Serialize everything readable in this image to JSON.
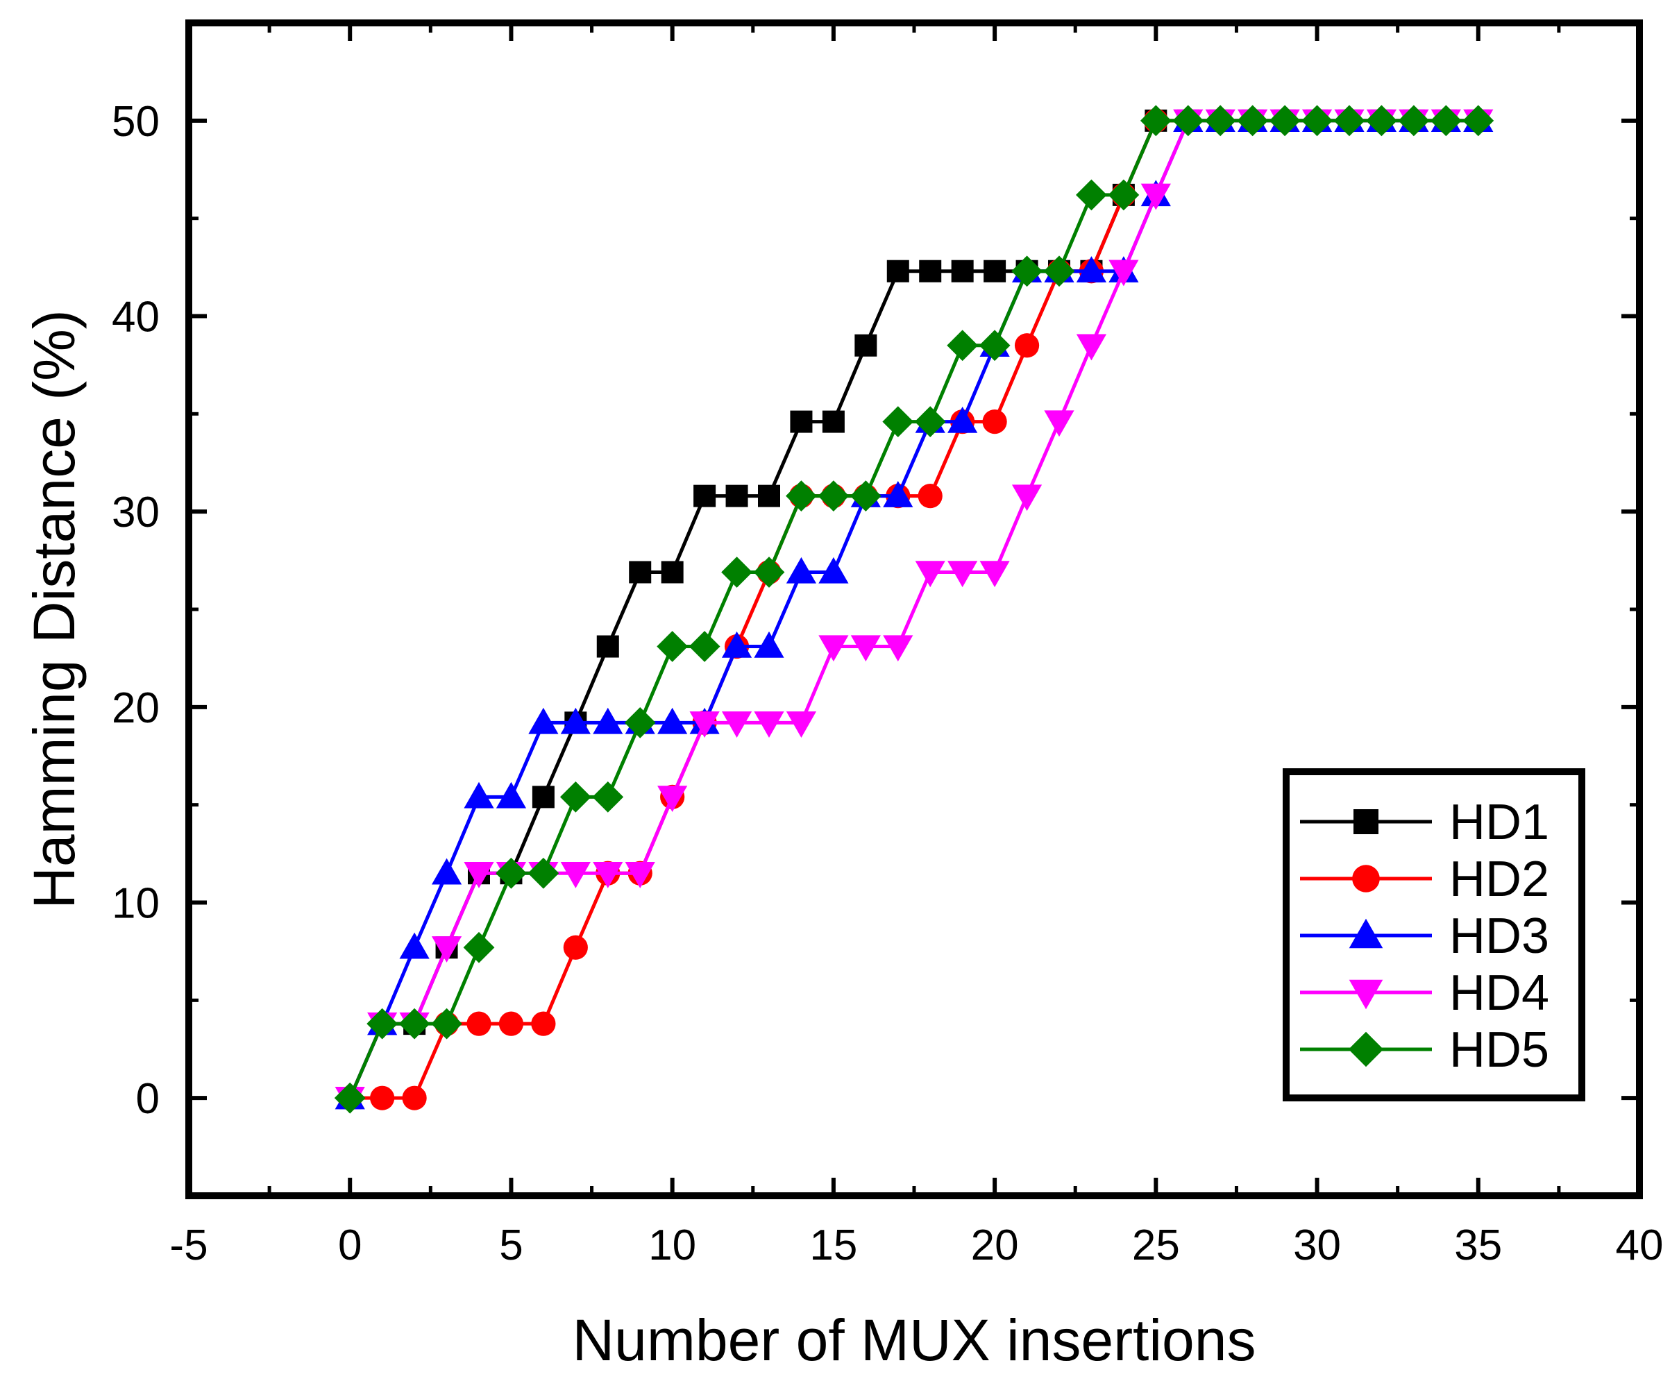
{
  "chart_data": {
    "type": "line",
    "xlabel": "Number of MUX insertions",
    "ylabel": "Hamming Distance (%)",
    "xlim": [
      -5,
      40
    ],
    "ylim": [
      -5,
      55
    ],
    "xticks": [
      -5,
      0,
      5,
      10,
      15,
      20,
      25,
      30,
      35,
      40
    ],
    "yticks": [
      0,
      10,
      20,
      30,
      40,
      50
    ],
    "grid": false,
    "legend_position": "bottom-right",
    "x": [
      0,
      1,
      2,
      3,
      4,
      5,
      6,
      7,
      8,
      9,
      10,
      11,
      12,
      13,
      14,
      15,
      16,
      17,
      18,
      19,
      20,
      21,
      22,
      23,
      24,
      25,
      26,
      27,
      28,
      29,
      30,
      31,
      32,
      33,
      34,
      35
    ],
    "series": [
      {
        "name": "HD1",
        "color": "#000000",
        "marker": "square",
        "values": [
          0,
          3.8,
          3.8,
          7.7,
          11.5,
          11.5,
          15.4,
          19.2,
          23.1,
          26.9,
          26.9,
          30.8,
          30.8,
          30.8,
          34.6,
          34.6,
          38.5,
          42.3,
          42.3,
          42.3,
          42.3,
          42.3,
          42.3,
          42.3,
          46.2,
          50,
          50,
          50,
          50,
          50,
          50,
          50,
          50,
          50,
          50,
          50
        ]
      },
      {
        "name": "HD2",
        "color": "#ff0000",
        "marker": "circle",
        "values": [
          0,
          0,
          0,
          3.8,
          3.8,
          3.8,
          3.8,
          7.7,
          11.5,
          11.5,
          15.4,
          19.2,
          23.1,
          26.9,
          30.8,
          30.8,
          30.8,
          30.8,
          30.8,
          34.6,
          34.6,
          38.5,
          42.3,
          42.3,
          46.2,
          50,
          50,
          50,
          50,
          50,
          50,
          50,
          50,
          50,
          50,
          50
        ]
      },
      {
        "name": "HD3",
        "color": "#0000ff",
        "marker": "triangle-up",
        "values": [
          0,
          3.8,
          7.7,
          11.5,
          15.4,
          15.4,
          19.2,
          19.2,
          19.2,
          19.2,
          19.2,
          19.2,
          23.1,
          23.1,
          26.9,
          26.9,
          30.8,
          30.8,
          34.6,
          34.6,
          38.5,
          42.3,
          42.3,
          42.3,
          42.3,
          46.2,
          50,
          50,
          50,
          50,
          50,
          50,
          50,
          50,
          50,
          50
        ]
      },
      {
        "name": "HD4",
        "color": "#ff00ff",
        "marker": "triangle-down",
        "values": [
          0,
          3.8,
          3.8,
          7.7,
          11.5,
          11.5,
          11.5,
          11.5,
          11.5,
          11.5,
          15.4,
          19.2,
          19.2,
          19.2,
          19.2,
          23.1,
          23.1,
          23.1,
          26.9,
          26.9,
          26.9,
          30.8,
          34.6,
          38.5,
          42.3,
          46.2,
          50,
          50,
          50,
          50,
          50,
          50,
          50,
          50,
          50,
          50
        ]
      },
      {
        "name": "HD5",
        "color": "#008000",
        "marker": "diamond",
        "values": [
          0,
          3.8,
          3.8,
          3.8,
          7.7,
          11.5,
          11.5,
          15.4,
          15.4,
          19.2,
          23.1,
          23.1,
          26.9,
          26.9,
          30.8,
          30.8,
          30.8,
          34.6,
          34.6,
          38.5,
          38.5,
          42.3,
          42.3,
          46.2,
          46.2,
          50,
          50,
          50,
          50,
          50,
          50,
          50,
          50,
          50,
          50,
          50
        ]
      }
    ]
  }
}
